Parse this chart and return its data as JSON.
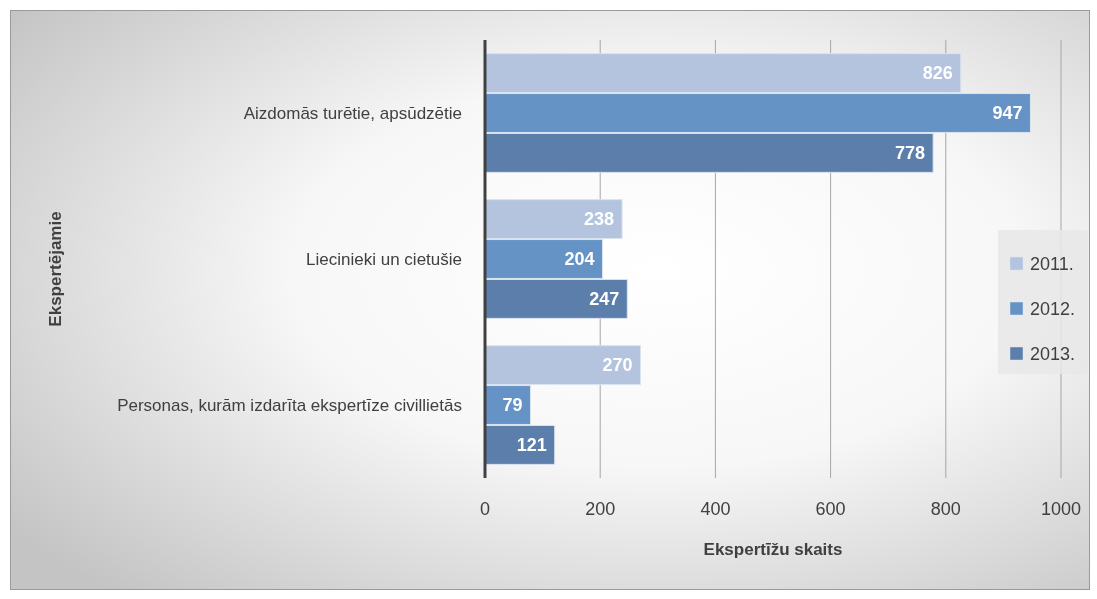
{
  "chart_data": {
    "type": "bar",
    "orientation": "horizontal",
    "xlabel": "Ekspertīžu skaits",
    "ylabel": "Ekspertējamie",
    "categories": [
      "Aizdomās turētie, apsūdzētie",
      "Liecinieki un cietušie",
      "Personas, kurām izdarīta ekspertīze civillietās"
    ],
    "series": [
      {
        "name": "2011.",
        "color": "#b4c4df",
        "values": [
          826,
          238,
          270
        ]
      },
      {
        "name": "2012.",
        "color": "#6693c6",
        "values": [
          947,
          204,
          79
        ]
      },
      {
        "name": "2013.",
        "color": "#5b7eab",
        "values": [
          778,
          247,
          121
        ]
      }
    ],
    "xlim": [
      0,
      1000
    ],
    "xticks": [
      0,
      200,
      400,
      600,
      800,
      1000
    ],
    "grid": "x",
    "legend": "right",
    "data_labels": true
  }
}
